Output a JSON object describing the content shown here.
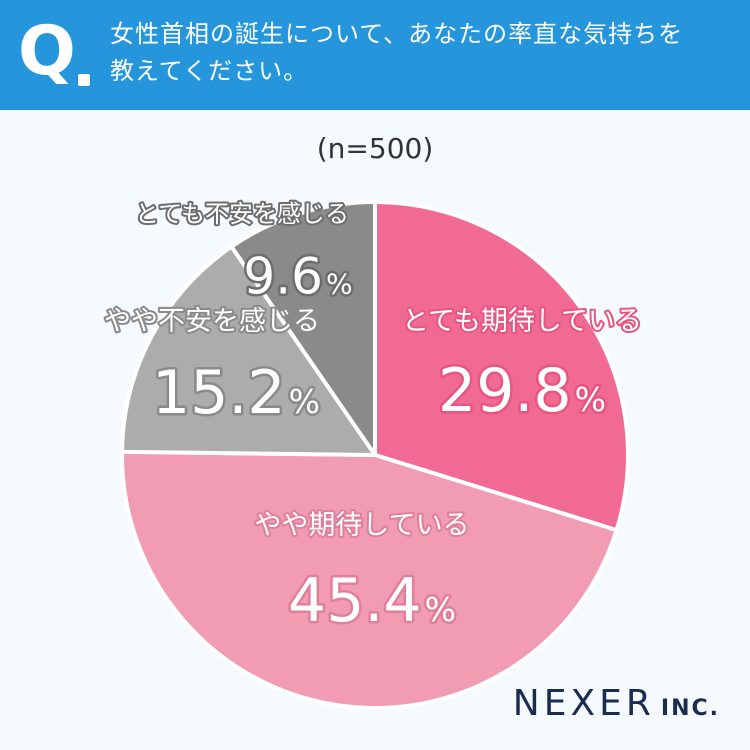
{
  "header": {
    "q_letter": "Q",
    "question_line1": "女性首相の誕生について、あなたの率直な気持ちを",
    "question_line2": "教えてください。"
  },
  "sample_size": "(n=500)",
  "brand": {
    "name": "NEXER",
    "suffix": "INC."
  },
  "colors": {
    "banner": "#2596dc",
    "background": "#f4fafd",
    "brand_text": "#1b2c52"
  },
  "chart_data": {
    "type": "pie",
    "unit": "%",
    "start_angle_deg": 0,
    "direction": "clockwise",
    "slices": [
      {
        "label": "とても期待している",
        "value": 29.8,
        "color": "#f06a93",
        "text_color": "#ffffff",
        "label_outline": "#e8557f"
      },
      {
        "label": "やや期待している",
        "value": 45.4,
        "color": "#f19cb2",
        "text_color": "#ffffff",
        "label_outline": "#e07f99"
      },
      {
        "label": "やや不安を感じる",
        "value": 15.2,
        "color": "#acacac",
        "text_color": "#ffffff",
        "label_outline": "#8a8a8a"
      },
      {
        "label": "とても不安を感じる",
        "value": 9.6,
        "color": "#8a8a8a",
        "text_color": "#ffffff",
        "label_outline": "#6d6d6d"
      }
    ]
  }
}
